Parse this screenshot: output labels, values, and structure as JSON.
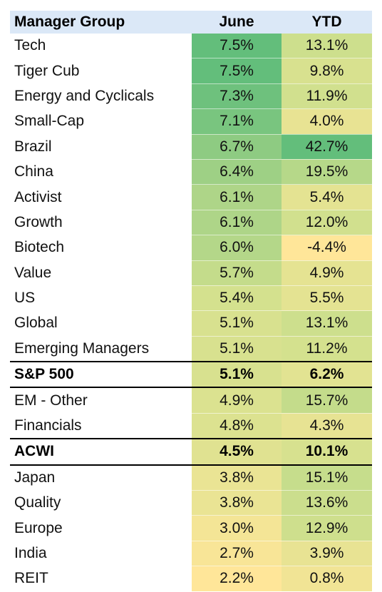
{
  "chart_data": {
    "type": "table",
    "columns": [
      "Manager Group",
      "June",
      "YTD"
    ],
    "rows": [
      {
        "name": "Tech",
        "june": "7.5%",
        "ytd": "13.1%",
        "june_value": 7.5,
        "ytd_value": 13.1,
        "benchmark": false
      },
      {
        "name": "Tiger Cub",
        "june": "7.5%",
        "ytd": "9.8%",
        "june_value": 7.5,
        "ytd_value": 9.8,
        "benchmark": false
      },
      {
        "name": "Energy and Cyclicals",
        "june": "7.3%",
        "ytd": "11.9%",
        "june_value": 7.3,
        "ytd_value": 11.9,
        "benchmark": false
      },
      {
        "name": "Small-Cap",
        "june": "7.1%",
        "ytd": "4.0%",
        "june_value": 7.1,
        "ytd_value": 4.0,
        "benchmark": false
      },
      {
        "name": "Brazil",
        "june": "6.7%",
        "ytd": "42.7%",
        "june_value": 6.7,
        "ytd_value": 42.7,
        "benchmark": false
      },
      {
        "name": "China",
        "june": "6.4%",
        "ytd": "19.5%",
        "june_value": 6.4,
        "ytd_value": 19.5,
        "benchmark": false
      },
      {
        "name": "Activist",
        "june": "6.1%",
        "ytd": "5.4%",
        "june_value": 6.1,
        "ytd_value": 5.4,
        "benchmark": false
      },
      {
        "name": "Growth",
        "june": "6.1%",
        "ytd": "12.0%",
        "june_value": 6.1,
        "ytd_value": 12.0,
        "benchmark": false
      },
      {
        "name": "Biotech",
        "june": "6.0%",
        "ytd": "-4.4%",
        "june_value": 6.0,
        "ytd_value": -4.4,
        "benchmark": false
      },
      {
        "name": "Value",
        "june": "5.7%",
        "ytd": "4.9%",
        "june_value": 5.7,
        "ytd_value": 4.9,
        "benchmark": false
      },
      {
        "name": "US",
        "june": "5.4%",
        "ytd": "5.5%",
        "june_value": 5.4,
        "ytd_value": 5.5,
        "benchmark": false
      },
      {
        "name": "Global",
        "june": "5.1%",
        "ytd": "13.1%",
        "june_value": 5.1,
        "ytd_value": 13.1,
        "benchmark": false
      },
      {
        "name": "Emerging Managers",
        "june": "5.1%",
        "ytd": "11.2%",
        "june_value": 5.1,
        "ytd_value": 11.2,
        "benchmark": false
      },
      {
        "name": "S&P 500",
        "june": "5.1%",
        "ytd": "6.2%",
        "june_value": 5.1,
        "ytd_value": 6.2,
        "benchmark": true
      },
      {
        "name": "EM - Other",
        "june": "4.9%",
        "ytd": "15.7%",
        "june_value": 4.9,
        "ytd_value": 15.7,
        "benchmark": false
      },
      {
        "name": "Financials",
        "june": "4.8%",
        "ytd": "4.3%",
        "june_value": 4.8,
        "ytd_value": 4.3,
        "benchmark": false
      },
      {
        "name": "ACWI",
        "june": "4.5%",
        "ytd": "10.1%",
        "june_value": 4.5,
        "ytd_value": 10.1,
        "benchmark": true
      },
      {
        "name": "Japan",
        "june": "3.8%",
        "ytd": "15.1%",
        "june_value": 3.8,
        "ytd_value": 15.1,
        "benchmark": false
      },
      {
        "name": "Quality",
        "june": "3.8%",
        "ytd": "13.6%",
        "june_value": 3.8,
        "ytd_value": 13.6,
        "benchmark": false
      },
      {
        "name": "Europe",
        "june": "3.0%",
        "ytd": "12.9%",
        "june_value": 3.0,
        "ytd_value": 12.9,
        "benchmark": false
      },
      {
        "name": "India",
        "june": "2.7%",
        "ytd": "3.9%",
        "june_value": 2.7,
        "ytd_value": 3.9,
        "benchmark": false
      },
      {
        "name": "REIT",
        "june": "2.2%",
        "ytd": "0.8%",
        "june_value": 2.2,
        "ytd_value": 0.8,
        "benchmark": false
      }
    ],
    "heatmap": {
      "low_color": "#ffe699",
      "mid_color": "#d4e18e",
      "high_color": "#63be7b",
      "header_color": "#dbe8f7"
    }
  }
}
